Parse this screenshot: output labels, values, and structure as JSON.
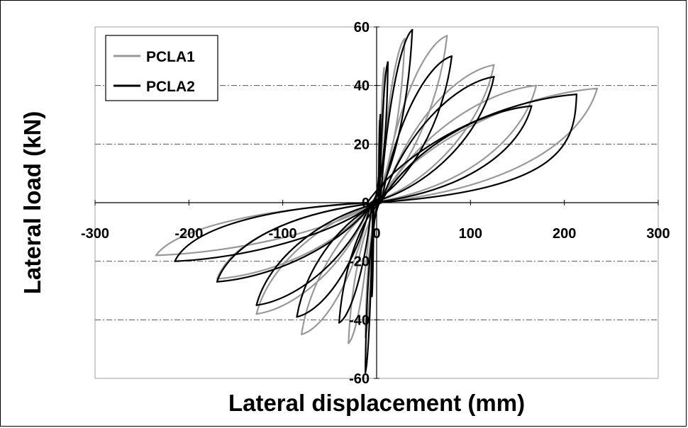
{
  "chart_data": {
    "type": "line",
    "title": "",
    "xlabel": "Lateral displacement (mm)",
    "ylabel": "Lateral load (kN)",
    "xlim": [
      -300,
      300
    ],
    "ylim": [
      -60,
      60
    ],
    "x_ticks": [
      "-300",
      "-200",
      "-100",
      "0",
      "100",
      "200",
      "300"
    ],
    "y_ticks": [
      "60",
      "40",
      "20",
      "0",
      "-20",
      "-40",
      "-60"
    ],
    "grid": "horizontal dash-dot at ±20 and ±40",
    "legend_position": "top-left",
    "colors": {
      "PCLA1": "#999999",
      "PCLA2": "#000000"
    },
    "series": [
      {
        "name": "PCLA1",
        "cycles": [
          {
            "pos_disp": 3,
            "pos_load": 28,
            "neg_disp": -6,
            "neg_load": -30,
            "pos_res": 2,
            "neg_res": -3,
            "pos_unload": 3,
            "neg_unload": -4
          },
          {
            "pos_disp": 8,
            "pos_load": 46,
            "neg_disp": -12,
            "neg_load": -46,
            "pos_res": 3,
            "neg_res": -4,
            "pos_unload": 5,
            "neg_unload": -6
          },
          {
            "pos_disp": 30,
            "pos_load": 56,
            "neg_disp": -30,
            "neg_load": -48,
            "pos_res": 4,
            "neg_res": -6,
            "pos_unload": 10,
            "neg_unload": -10
          },
          {
            "pos_disp": 75,
            "pos_load": 57,
            "neg_disp": -80,
            "neg_load": -45,
            "pos_res": 5,
            "neg_res": -7,
            "pos_unload": 18,
            "neg_unload": -18
          },
          {
            "pos_disp": 125,
            "pos_load": 47,
            "neg_disp": -128,
            "neg_load": -38,
            "pos_res": 6,
            "neg_res": -6,
            "pos_unload": 40,
            "neg_unload": -40
          },
          {
            "pos_disp": 170,
            "pos_load": 40,
            "neg_disp": -170,
            "neg_load": -26,
            "pos_res": 5,
            "neg_res": -5,
            "pos_unload": 80,
            "neg_unload": -80
          },
          {
            "pos_disp": 235,
            "pos_load": 39,
            "neg_disp": -235,
            "neg_load": -18,
            "pos_res": 0,
            "neg_res": -2,
            "pos_unload": 130,
            "neg_unload": -120
          }
        ]
      },
      {
        "name": "PCLA2",
        "cycles": [
          {
            "pos_disp": 4,
            "pos_load": 30,
            "neg_disp": -5,
            "neg_load": -32,
            "pos_res": 2,
            "neg_res": -3,
            "pos_unload": 3,
            "neg_unload": -4
          },
          {
            "pos_disp": 12,
            "pos_load": 48,
            "neg_disp": -12,
            "neg_load": -58,
            "pos_res": 3,
            "neg_res": -4,
            "pos_unload": 6,
            "neg_unload": -6
          },
          {
            "pos_disp": 38,
            "pos_load": 59,
            "neg_disp": -40,
            "neg_load": -41,
            "pos_res": 4,
            "neg_res": -5,
            "pos_unload": 12,
            "neg_unload": -12
          },
          {
            "pos_disp": 80,
            "pos_load": 50,
            "neg_disp": -85,
            "neg_load": -39,
            "pos_res": 5,
            "neg_res": -6,
            "pos_unload": 25,
            "neg_unload": -25
          },
          {
            "pos_disp": 125,
            "pos_load": 43,
            "neg_disp": -128,
            "neg_load": -35,
            "pos_res": 5,
            "neg_res": -6,
            "pos_unload": 45,
            "neg_unload": -45
          },
          {
            "pos_disp": 165,
            "pos_load": 33,
            "neg_disp": -170,
            "neg_load": -27,
            "pos_res": 4,
            "neg_res": -4,
            "pos_unload": 85,
            "neg_unload": -85
          },
          {
            "pos_disp": 213,
            "pos_load": 37,
            "neg_disp": -215,
            "neg_load": -20,
            "pos_res": -10,
            "neg_res": -2,
            "pos_unload": 200,
            "neg_unload": -130
          }
        ]
      }
    ]
  }
}
